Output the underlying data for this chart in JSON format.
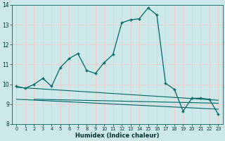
{
  "xlabel": "Humidex (Indice chaleur)",
  "bg_color": "#cce8e8",
  "grid_color": "#d4f0f0",
  "line_color": "#006666",
  "xlim": [
    -0.5,
    23.5
  ],
  "ylim": [
    8,
    14
  ],
  "yticks": [
    8,
    9,
    10,
    11,
    12,
    13,
    14
  ],
  "xticks": [
    0,
    1,
    2,
    3,
    4,
    5,
    6,
    7,
    8,
    9,
    10,
    11,
    12,
    13,
    14,
    15,
    16,
    17,
    18,
    19,
    20,
    21,
    22,
    23
  ],
  "main_x": [
    0,
    1,
    2,
    3,
    4,
    5,
    6,
    7,
    8,
    9,
    10,
    11,
    12,
    13,
    14,
    15,
    16,
    17,
    18,
    19,
    20,
    21,
    22,
    23
  ],
  "main_y": [
    9.9,
    9.8,
    10.0,
    10.3,
    9.9,
    10.85,
    11.3,
    11.55,
    10.7,
    10.55,
    11.1,
    11.5,
    13.1,
    13.25,
    13.3,
    13.85,
    13.5,
    10.05,
    9.75,
    8.65,
    9.3,
    9.3,
    9.25,
    8.5
  ],
  "line2_x": [
    0,
    23
  ],
  "line2_y": [
    9.85,
    9.2
  ],
  "line3_x": [
    0,
    23
  ],
  "line3_y": [
    9.25,
    8.75
  ],
  "line4_x": [
    2,
    23
  ],
  "line4_y": [
    9.25,
    9.05
  ]
}
